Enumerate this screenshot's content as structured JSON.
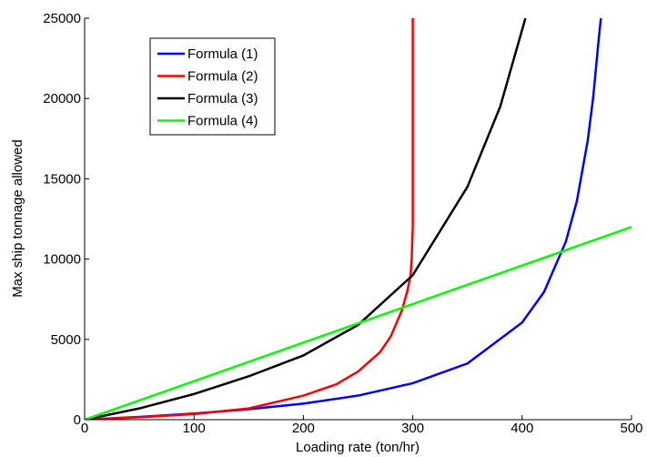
{
  "chart_data": {
    "type": "line",
    "x_label": "Loading rate (ton/hr)",
    "y_label": "Max ship tonnage allowed",
    "xlim": [
      0,
      500
    ],
    "ylim": [
      0,
      25000
    ],
    "xticks": [
      0,
      100,
      200,
      300,
      400,
      500
    ],
    "yticks": [
      0,
      5000,
      10000,
      15000,
      20000,
      25000
    ],
    "grid": false,
    "legend_position": "upper-left",
    "series": [
      {
        "name": "Formula (1)",
        "color": "#0000ff",
        "x": [
          0,
          50,
          100,
          150,
          200,
          250,
          300,
          350,
          400,
          420,
          440,
          450,
          460,
          465,
          470,
          472
        ],
        "values": [
          0,
          170,
          380,
          650,
          1000,
          1500,
          2270,
          3500,
          6050,
          7950,
          11100,
          13600,
          17400,
          20100,
          23700,
          25000
        ]
      },
      {
        "name": "Formula (2)",
        "color": "#ff0000",
        "x": [
          0,
          50,
          100,
          150,
          200,
          230,
          250,
          270,
          280,
          290,
          295,
          298,
          299,
          300,
          300
        ],
        "values": [
          0,
          150,
          350,
          700,
          1500,
          2200,
          3000,
          4200,
          5200,
          6800,
          8000,
          9000,
          10000,
          12000,
          25000
        ]
      },
      {
        "name": "Formula (3)",
        "color": "#000000",
        "x": [
          0,
          50,
          100,
          150,
          200,
          250,
          300,
          350,
          380,
          403
        ],
        "values": [
          0,
          700,
          1600,
          2700,
          4000,
          5900,
          9000,
          14500,
          19500,
          25000
        ]
      },
      {
        "name": "Formula (4)",
        "color": "#00ff00",
        "x": [
          0,
          500
        ],
        "values": [
          0,
          12000
        ]
      }
    ]
  }
}
